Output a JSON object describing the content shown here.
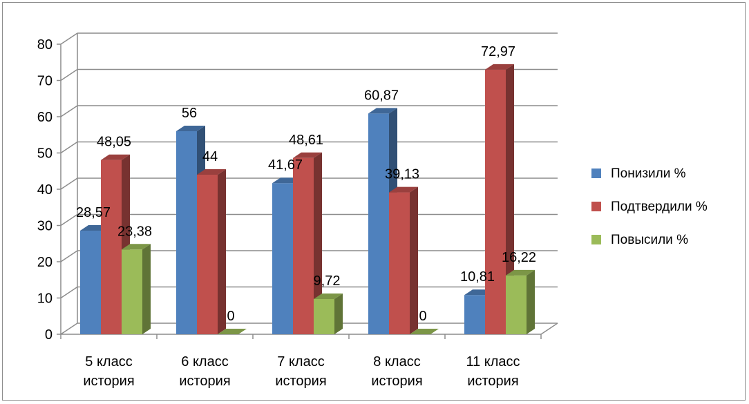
{
  "chart_data": {
    "type": "bar",
    "style": "3d-clustered-column",
    "categories": [
      [
        "5 класс",
        "история"
      ],
      [
        "6 класс",
        "история"
      ],
      [
        "7 класс",
        "история"
      ],
      [
        "8 класс",
        "история"
      ],
      [
        "11 класс",
        "история"
      ]
    ],
    "series": [
      {
        "name": "Понизили %",
        "color": "#4f81bd",
        "values": [
          28.57,
          56,
          41.67,
          60.87,
          10.81
        ],
        "labels": [
          "28,57",
          "56",
          "41,67",
          "60,87",
          "10,81"
        ]
      },
      {
        "name": "Подтвердили %",
        "color": "#c0504d",
        "values": [
          48.05,
          44,
          48.61,
          39.13,
          72.97
        ],
        "labels": [
          "48,05",
          "44",
          "48,61",
          "39,13",
          "72,97"
        ]
      },
      {
        "name": "Повысили %",
        "color": "#9bbb59",
        "values": [
          23.38,
          0,
          9.72,
          0,
          16.22
        ],
        "labels": [
          "23,38",
          "0",
          "9,72",
          "0",
          "16,22"
        ]
      }
    ],
    "yticks": [
      "0",
      "10",
      "20",
      "30",
      "40",
      "50",
      "60",
      "70",
      "80"
    ],
    "ylim": [
      0,
      80
    ],
    "grid": true,
    "legend_position": "right"
  }
}
